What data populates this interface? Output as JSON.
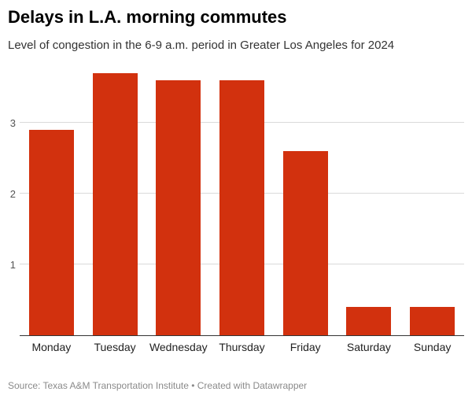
{
  "header": {
    "title": "Delays in L.A. morning commutes",
    "subtitle": "Level of congestion in the 6-9 a.m. period in Greater Los Angeles for 2024"
  },
  "chart_data": {
    "type": "bar",
    "title": "Delays in L.A. morning commutes",
    "subtitle": "Level of congestion in the 6-9 a.m. period in Greater Los Angeles for 2024",
    "categories": [
      "Monday",
      "Tuesday",
      "Wednesday",
      "Thursday",
      "Friday",
      "Saturday",
      "Sunday"
    ],
    "values": [
      2.9,
      3.7,
      3.6,
      3.6,
      2.6,
      0.4,
      0.4
    ],
    "xlabel": "",
    "ylabel": "",
    "yticks": [
      1,
      2,
      3
    ],
    "ylim": [
      0,
      3.82
    ],
    "grid": "horizontal",
    "legend": "none",
    "bar_color": "#d2310e",
    "gridline_color": "#dadada",
    "baseline_color": "#333333"
  },
  "footer": {
    "text": "Source: Texas A&M Transportation Institute • Created with Datawrapper"
  }
}
